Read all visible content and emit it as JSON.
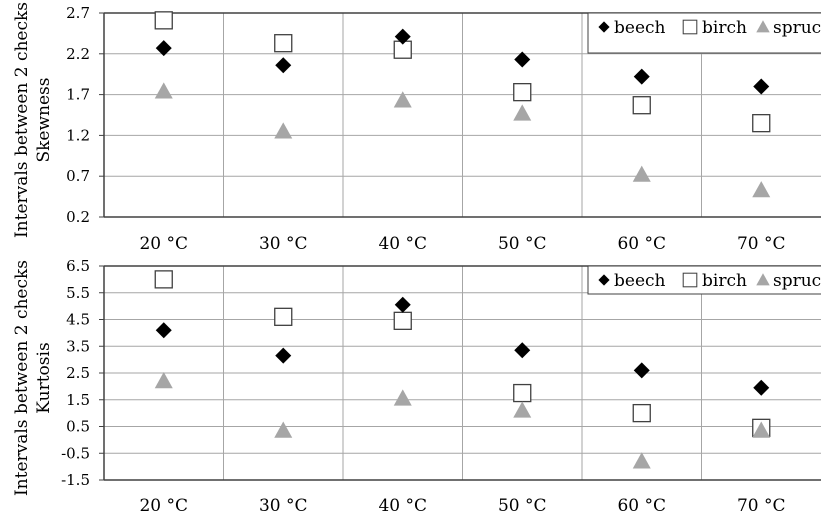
{
  "chart_data": [
    {
      "type": "scatter",
      "ylabel_line1": "Intervals between 2 checks",
      "ylabel_line2": "Skewness",
      "categories": [
        "20 °C",
        "30 °C",
        "40 °C",
        "50 °C",
        "60 °C",
        "70 °C"
      ],
      "yticks": [
        "0.2",
        "0.7",
        "1.2",
        "1.7",
        "2.2",
        "2.7"
      ],
      "ylim": [
        0.2,
        2.7
      ],
      "grid": true,
      "legend_position": "top-right",
      "series": [
        {
          "name": "beech",
          "marker": "diamond",
          "values": [
            2.27,
            2.06,
            2.41,
            2.13,
            1.92,
            1.8
          ]
        },
        {
          "name": "birch",
          "marker": "square",
          "values": [
            2.61,
            2.33,
            2.25,
            1.73,
            1.57,
            1.35
          ]
        },
        {
          "name": "spruce",
          "marker": "triangle",
          "values": [
            1.74,
            1.25,
            1.63,
            1.47,
            0.72,
            0.53
          ]
        }
      ]
    },
    {
      "type": "scatter",
      "ylabel_line1": "Intervals between 2 checks",
      "ylabel_line2": "Kurtosis",
      "categories": [
        "20 °C",
        "30 °C",
        "40 °C",
        "50 °C",
        "60 °C",
        "70 °C"
      ],
      "yticks": [
        "-1.5",
        "-0.5",
        "0.5",
        "1.5",
        "2.5",
        "3.5",
        "4.5",
        "5.5",
        "6.5"
      ],
      "ylim": [
        -1.5,
        6.5
      ],
      "grid": true,
      "legend_position": "top-right",
      "series": [
        {
          "name": "beech",
          "marker": "diamond",
          "values": [
            4.1,
            3.15,
            5.05,
            3.35,
            2.6,
            1.95
          ]
        },
        {
          "name": "birch",
          "marker": "square",
          "values": [
            6.0,
            4.6,
            4.45,
            1.75,
            1.0,
            0.45
          ]
        },
        {
          "name": "spruce",
          "marker": "triangle",
          "values": [
            2.2,
            0.35,
            1.55,
            1.1,
            -0.8,
            0.35
          ]
        }
      ]
    }
  ],
  "colors": {
    "beech": "#000000",
    "birch": "#ffffff",
    "spruce": "#a6a6a6",
    "grid": "#a6a6a6",
    "frame": "#404040"
  }
}
